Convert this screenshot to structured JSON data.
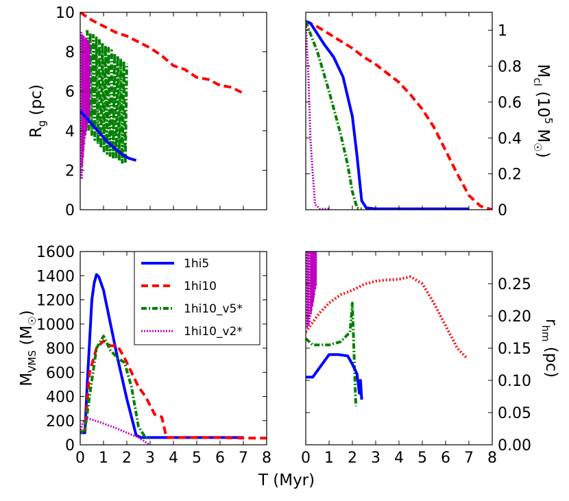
{
  "xlabel": "T (Myr)",
  "legend": {
    "entries": [
      "1hi5",
      "1hi10",
      "1hi10_v5*",
      "1hi10_v2*"
    ],
    "colors": [
      "#0000ff",
      "#ff0000",
      "#008000",
      "#bf00bf"
    ]
  },
  "chart_data": [
    {
      "id": "rg",
      "type": "line",
      "ylabel": "Rg (pc)",
      "ylabel_main": "R",
      "ylabel_sub": "g",
      "ylabel_tail": " (pc)",
      "xlim": [
        0,
        8
      ],
      "ylim": [
        0,
        10
      ],
      "xticks": [],
      "yticks": [
        "0",
        "2",
        "4",
        "6",
        "8",
        "10"
      ],
      "series": [
        {
          "name": "1hi10",
          "style": "dashed",
          "color": "#ff0000",
          "x": [
            0,
            0.5,
            1,
            1.5,
            2,
            2.5,
            3,
            3.5,
            4,
            4.5,
            5,
            5.5,
            6,
            6.5,
            7
          ],
          "y": [
            10,
            9.6,
            9.3,
            9.0,
            8.8,
            8.5,
            8.2,
            7.8,
            7.3,
            7.1,
            6.7,
            6.6,
            6.3,
            6.2,
            5.9
          ]
        },
        {
          "name": "1hi10_v5*",
          "style": "dashdot",
          "color": "#008000",
          "oscillate": true,
          "x": [
            0.3,
            0.6,
            0.9,
            1.2,
            1.5,
            1.8,
            2.0
          ],
          "y_upper": [
            9.1,
            8.8,
            8.5,
            8.2,
            7.9,
            7.6,
            7.4
          ],
          "y_lower": [
            4.2,
            3.6,
            3.1,
            2.8,
            2.6,
            2.4,
            2.3
          ]
        },
        {
          "name": "1hi10_v2*",
          "style": "dotted",
          "color": "#bf00bf",
          "oscillate": true,
          "x": [
            0.05,
            0.1,
            0.2,
            0.3,
            0.4
          ],
          "y_upper": [
            9.0,
            8.8,
            8.7,
            8.6,
            8.4
          ],
          "y_lower": [
            1.2,
            2.5,
            3.6,
            4.3,
            5.0
          ]
        },
        {
          "name": "1hi5",
          "style": "solid",
          "color": "#0000ff",
          "x": [
            0,
            0.3,
            0.6,
            0.9,
            1.2,
            1.5,
            1.8,
            2.1,
            2.4
          ],
          "y": [
            5.0,
            4.6,
            4.2,
            3.8,
            3.4,
            3.1,
            2.8,
            2.6,
            2.5
          ]
        }
      ]
    },
    {
      "id": "mcl",
      "type": "line",
      "ylabel": "Mcl (10^5 M☉)",
      "ylabel_main": "M",
      "ylabel_sub": "cl",
      "ylabel_tail": " (10",
      "ylabel_sup": "5",
      "ylabel_tail2": " M",
      "ylabel_sun": "☉",
      "ylabel_close": ")",
      "xlim": [
        0,
        8
      ],
      "ylim": [
        0,
        1.1
      ],
      "yticks_right": [
        "0",
        "0.2",
        "0.4",
        "0.6",
        "0.8",
        "1"
      ],
      "series": [
        {
          "name": "1hi10",
          "style": "dashed",
          "color": "#ff0000",
          "x": [
            0,
            0.5,
            1,
            1.5,
            2,
            2.5,
            3,
            3.5,
            4,
            4.5,
            5,
            5.5,
            6,
            6.5,
            7,
            7.5,
            8
          ],
          "y": [
            1.05,
            1.02,
            0.98,
            0.94,
            0.9,
            0.85,
            0.81,
            0.76,
            0.71,
            0.64,
            0.56,
            0.46,
            0.33,
            0.2,
            0.08,
            0.02,
            0.0
          ]
        },
        {
          "name": "1hi5",
          "style": "solid",
          "color": "#0000ff",
          "x": [
            0,
            0.2,
            0.4,
            0.8,
            1.2,
            1.6,
            2.0,
            2.2,
            2.4,
            2.6,
            3,
            5,
            7
          ],
          "y": [
            1.05,
            1.04,
            1.0,
            0.92,
            0.85,
            0.74,
            0.52,
            0.3,
            0.05,
            0.01,
            0.005,
            0.005,
            0.005
          ]
        },
        {
          "name": "1hi10_v5*",
          "style": "dashdot",
          "color": "#008000",
          "x": [
            0,
            0.2,
            0.5,
            1.0,
            1.5,
            1.8,
            2.0,
            2.2,
            2.4
          ],
          "y": [
            1.05,
            0.98,
            0.88,
            0.66,
            0.42,
            0.25,
            0.1,
            0.01,
            0.005
          ]
        },
        {
          "name": "1hi10_v2*",
          "style": "dotted",
          "color": "#bf00bf",
          "x": [
            0,
            0.05,
            0.1,
            0.15,
            0.2,
            0.3,
            0.4,
            0.6,
            1.0
          ],
          "y": [
            1.05,
            0.9,
            0.8,
            0.6,
            0.4,
            0.2,
            0.03,
            0.005,
            0.005
          ]
        }
      ]
    },
    {
      "id": "mvms",
      "type": "line",
      "ylabel": "MVMS (M☉)",
      "ylabel_main": "M",
      "ylabel_sub": "VMS",
      "ylabel_tail": " (M",
      "ylabel_sun": "☉",
      "ylabel_close": ")",
      "xlim": [
        0,
        8
      ],
      "ylim": [
        0,
        1600
      ],
      "xticks": [
        "0",
        "1",
        "2",
        "3",
        "4",
        "5",
        "6",
        "7",
        "8"
      ],
      "yticks": [
        "0",
        "200",
        "400",
        "600",
        "800",
        "1000",
        "1200",
        "1400",
        "1600"
      ],
      "series": [
        {
          "name": "1hi5",
          "style": "solid",
          "color": "#0000ff",
          "x": [
            0,
            0.2,
            0.3,
            0.4,
            0.5,
            0.6,
            0.7,
            0.8,
            1.0,
            1.3,
            1.6,
            2.0,
            2.4,
            2.6,
            3,
            4,
            5,
            6,
            7
          ],
          "y": [
            100,
            100,
            500,
            850,
            1200,
            1340,
            1410,
            1390,
            1280,
            1000,
            720,
            380,
            80,
            60,
            60,
            60,
            60,
            60,
            60
          ]
        },
        {
          "name": "1hi10",
          "style": "dashed",
          "color": "#ff0000",
          "x": [
            0,
            0.2,
            0.4,
            0.7,
            1.0,
            1.3,
            1.6,
            1.9,
            2.2,
            2.5,
            2.8,
            3.2,
            3.5,
            3.7,
            4,
            5,
            6,
            7,
            8
          ],
          "y": [
            100,
            120,
            600,
            800,
            860,
            820,
            820,
            720,
            600,
            480,
            400,
            250,
            230,
            60,
            60,
            60,
            60,
            55,
            55
          ]
        },
        {
          "name": "1hi10_v5*",
          "style": "dashdot",
          "color": "#008000",
          "x": [
            0,
            0.2,
            0.4,
            0.7,
            1.0,
            1.3,
            1.6,
            1.9,
            2.2,
            2.5,
            2.8,
            3.0
          ],
          "y": [
            100,
            120,
            400,
            800,
            900,
            780,
            720,
            680,
            480,
            150,
            60,
            55
          ]
        },
        {
          "name": "1hi10_v2*",
          "style": "dotted",
          "color": "#bf00bf",
          "x": [
            0,
            0.1,
            0.3,
            0.8,
            1.5,
            2.0,
            2.5,
            2.9,
            3.0
          ],
          "y": [
            100,
            180,
            220,
            190,
            140,
            100,
            60,
            10,
            0
          ]
        }
      ]
    },
    {
      "id": "rhm",
      "type": "line",
      "ylabel": "rhm (pc)",
      "ylabel_main": "r",
      "ylabel_sub": "hm",
      "ylabel_tail": " (pc)",
      "xlim": [
        0,
        8
      ],
      "ylim": [
        0,
        0.3
      ],
      "xticks": [
        "0",
        "1",
        "2",
        "3",
        "4",
        "5",
        "6",
        "7",
        "8"
      ],
      "yticks_right": [
        "0.00",
        "0.05",
        "0.10",
        "0.15",
        "0.20",
        "0.25"
      ],
      "series": [
        {
          "name": "1hi10",
          "style": "dots",
          "color": "#ff0000",
          "x": [
            0,
            0.3,
            0.6,
            1.0,
            1.5,
            2.0,
            2.5,
            3.0,
            3.5,
            4.0,
            4.5,
            5.0,
            5.5,
            6.0,
            6.5,
            6.9
          ],
          "y": [
            0.175,
            0.19,
            0.205,
            0.22,
            0.233,
            0.24,
            0.249,
            0.254,
            0.256,
            0.257,
            0.261,
            0.25,
            0.22,
            0.185,
            0.15,
            0.135
          ]
        },
        {
          "name": "1hi10_v5*",
          "style": "dashdot",
          "color": "#008000",
          "x": [
            0,
            0.3,
            0.6,
            1.0,
            1.5,
            1.9,
            2.0,
            2.1,
            2.15
          ],
          "y": [
            0.165,
            0.155,
            0.155,
            0.155,
            0.16,
            0.175,
            0.22,
            0.11,
            0.06
          ]
        },
        {
          "name": "1hi10_v2*",
          "style": "dotted",
          "color": "#bf00bf",
          "oscillate": true,
          "x": [
            0.05,
            0.15,
            0.25,
            0.35,
            0.45
          ],
          "y_upper": [
            0.3,
            0.3,
            0.3,
            0.3,
            0.3
          ],
          "y_lower": [
            0.18,
            0.19,
            0.21,
            0.23,
            0.25
          ]
        },
        {
          "name": "1hi5",
          "style": "solid",
          "color": "#0000ff",
          "x": [
            0,
            0.3,
            0.6,
            1.0,
            1.4,
            1.8,
            2.0,
            2.2,
            2.3,
            2.35,
            2.4
          ],
          "y": [
            0.105,
            0.105,
            0.12,
            0.14,
            0.14,
            0.138,
            0.125,
            0.11,
            0.08,
            0.1,
            0.07
          ]
        }
      ]
    }
  ]
}
